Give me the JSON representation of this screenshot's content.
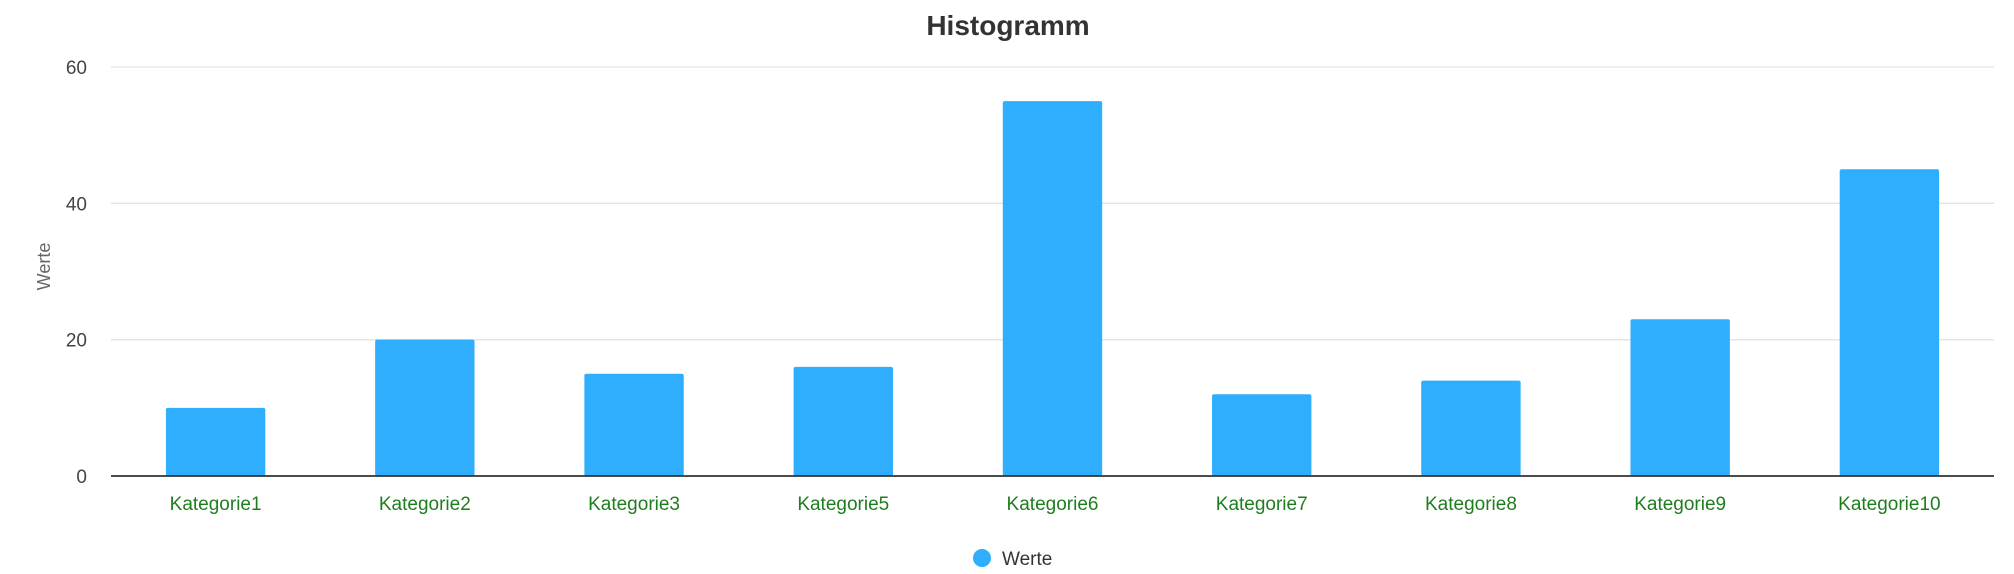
{
  "colors": {
    "bar": "#2eaefc",
    "title": "#333333",
    "category_label": "#1e7e1e",
    "grid": "#e3e3e3"
  },
  "chart_data": {
    "type": "bar",
    "title": "Histogramm",
    "xlabel": "",
    "ylabel": "Werte",
    "categories": [
      "Kategorie1",
      "Kategorie2",
      "Kategorie3",
      "Kategorie5",
      "Kategorie6",
      "Kategorie7",
      "Kategorie8",
      "Kategorie9",
      "Kategorie10"
    ],
    "series": [
      {
        "name": "Werte",
        "values": [
          10,
          20,
          15,
          16,
          55,
          12,
          14,
          23,
          45
        ]
      }
    ],
    "ylim": [
      0,
      60
    ],
    "yticks": [
      0,
      20,
      40,
      60
    ],
    "grid": true,
    "legend_position": "bottom-center"
  }
}
